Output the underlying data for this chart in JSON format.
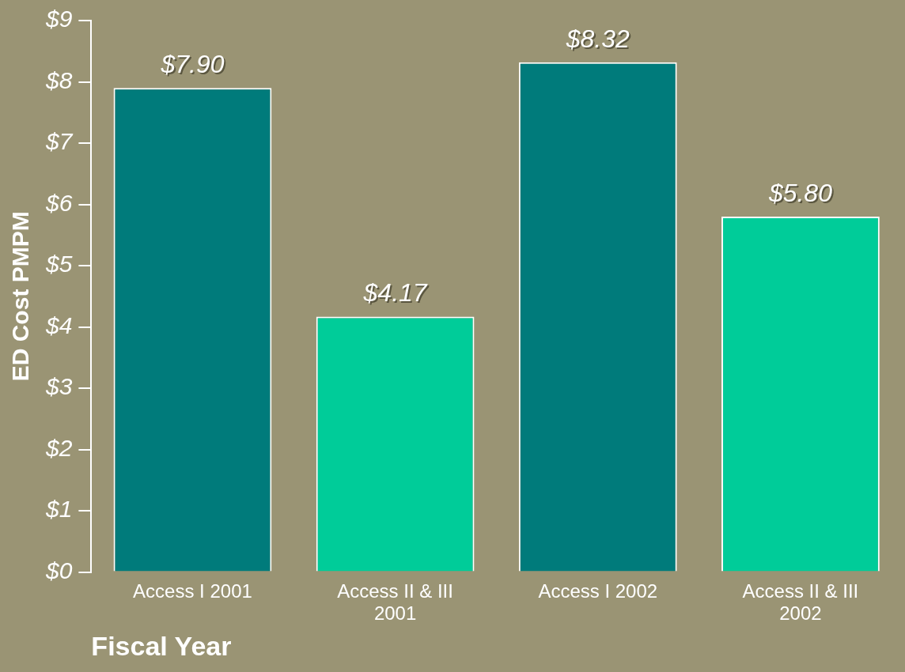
{
  "chart_data": {
    "type": "bar",
    "xlabel": "Fiscal Year",
    "ylabel": "ED Cost PMPM",
    "categories": [
      "Access I 2001",
      "Access II & III 2001",
      "Access I 2002",
      "Access II & III 2002"
    ],
    "values": [
      7.9,
      4.17,
      8.32,
      5.8
    ],
    "colors": [
      "#007b7b",
      "#00cc99",
      "#007b7b",
      "#00cc99"
    ],
    "value_labels": [
      "$7.90",
      "$4.17",
      "$8.32",
      "$5.80"
    ],
    "ylim": [
      0,
      9
    ],
    "yticks": [
      {
        "value": 0,
        "label": "$0"
      },
      {
        "value": 1,
        "label": "$1"
      },
      {
        "value": 2,
        "label": "$2"
      },
      {
        "value": 3,
        "label": "$3"
      },
      {
        "value": 4,
        "label": "$4"
      },
      {
        "value": 5,
        "label": "$5"
      },
      {
        "value": 6,
        "label": "$6"
      },
      {
        "value": 7,
        "label": "$7"
      },
      {
        "value": 8,
        "label": "$8"
      },
      {
        "value": 9,
        "label": "$9"
      }
    ],
    "grid": false,
    "legend": false
  }
}
